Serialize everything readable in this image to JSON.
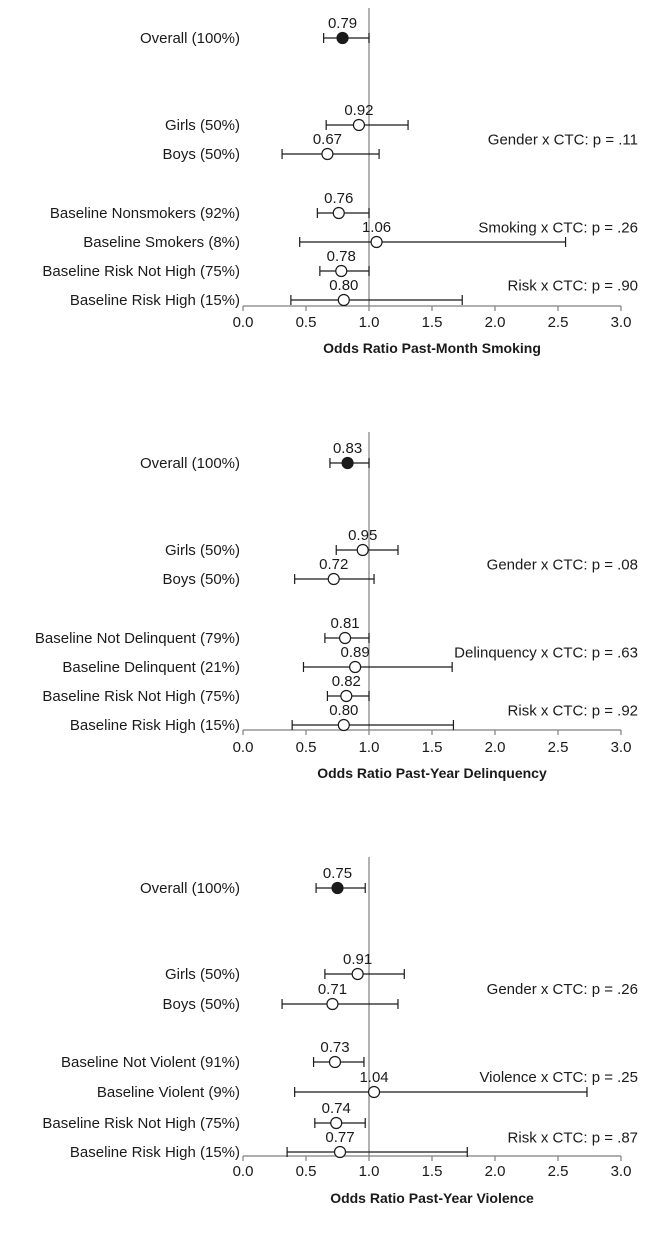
{
  "chart_data": [
    {
      "type": "forest",
      "xlabel": "Odds Ratio Past-Month Smoking",
      "xlim": [
        0.0,
        3.0
      ],
      "xticks": [
        "0.0",
        "0.5",
        "1.0",
        "1.5",
        "2.0",
        "2.5",
        "3.0"
      ],
      "reference_line": 1.0,
      "rows": [
        {
          "label": "Overall (100%)",
          "or_label": "0.79",
          "or": 0.79,
          "ci": [
            0.64,
            1.0
          ],
          "filled": true
        },
        {
          "label": "Girls (50%)",
          "or_label": "0.92",
          "or": 0.92,
          "ci": [
            0.66,
            1.31
          ],
          "filled": false
        },
        {
          "label": "Boys (50%)",
          "or_label": "0.67",
          "or": 0.67,
          "ci": [
            0.31,
            1.08
          ],
          "filled": false
        },
        {
          "label": "Baseline Nonsmokers (92%)",
          "or_label": "0.76",
          "or": 0.76,
          "ci": [
            0.59,
            1.0
          ],
          "filled": false
        },
        {
          "label": "Baseline Smokers (8%)",
          "or_label": "1.06",
          "or": 1.06,
          "ci": [
            0.45,
            2.56
          ],
          "filled": false
        },
        {
          "label": "Baseline Risk Not High (75%)",
          "or_label": "0.78",
          "or": 0.78,
          "ci": [
            0.61,
            1.0
          ],
          "filled": false
        },
        {
          "label": "Baseline Risk High (15%)",
          "or_label": "0.80",
          "or": 0.8,
          "ci": [
            0.38,
            1.74
          ],
          "filled": false
        }
      ],
      "interactions": [
        {
          "label": "Gender x CTC:  p = .11",
          "rows": [
            1,
            2
          ]
        },
        {
          "label": "Smoking x CTC:  p = .26",
          "rows": [
            3,
            4
          ]
        },
        {
          "label": "Risk x CTC:  p = .90",
          "rows": [
            5,
            6
          ]
        }
      ]
    },
    {
      "type": "forest",
      "xlabel": "Odds Ratio Past-Year Delinquency",
      "xlim": [
        0.0,
        3.0
      ],
      "xticks": [
        "0.0",
        "0.5",
        "1.0",
        "1.5",
        "2.0",
        "2.5",
        "3.0"
      ],
      "reference_line": 1.0,
      "rows": [
        {
          "label": "Overall (100%)",
          "or_label": "0.83",
          "or": 0.83,
          "ci": [
            0.69,
            1.0
          ],
          "filled": true
        },
        {
          "label": "Girls (50%)",
          "or_label": "0.95",
          "or": 0.95,
          "ci": [
            0.74,
            1.23
          ],
          "filled": false
        },
        {
          "label": "Boys (50%)",
          "or_label": "0.72",
          "or": 0.72,
          "ci": [
            0.41,
            1.04
          ],
          "filled": false
        },
        {
          "label": "Baseline Not Delinquent (79%)",
          "or_label": "0.81",
          "or": 0.81,
          "ci": [
            0.65,
            1.0
          ],
          "filled": false
        },
        {
          "label": "Baseline Delinquent (21%)",
          "or_label": "0.89",
          "or": 0.89,
          "ci": [
            0.48,
            1.66
          ],
          "filled": false
        },
        {
          "label": "Baseline Risk Not High (75%)",
          "or_label": "0.82",
          "or": 0.82,
          "ci": [
            0.67,
            1.0
          ],
          "filled": false
        },
        {
          "label": "Baseline Risk High (15%)",
          "or_label": "0.80",
          "or": 0.8,
          "ci": [
            0.39,
            1.67
          ],
          "filled": false
        }
      ],
      "interactions": [
        {
          "label": "Gender x CTC:  p = .08",
          "rows": [
            1,
            2
          ]
        },
        {
          "label": "Delinquency x CTC:  p = .63",
          "rows": [
            3,
            4
          ]
        },
        {
          "label": "Risk x CTC:  p = .92",
          "rows": [
            5,
            6
          ]
        }
      ]
    },
    {
      "type": "forest",
      "xlabel": "Odds Ratio Past-Year Violence",
      "xlim": [
        0.0,
        3.0
      ],
      "xticks": [
        "0.0",
        "0.5",
        "1.0",
        "1.5",
        "2.0",
        "2.5",
        "3.0"
      ],
      "reference_line": 1.0,
      "rows": [
        {
          "label": "Overall (100%)",
          "or_label": "0.75",
          "or": 0.75,
          "ci": [
            0.58,
            0.97
          ],
          "filled": true
        },
        {
          "label": "Girls (50%)",
          "or_label": "0.91",
          "or": 0.91,
          "ci": [
            0.65,
            1.28
          ],
          "filled": false
        },
        {
          "label": "Boys (50%)",
          "or_label": "0.71",
          "or": 0.71,
          "ci": [
            0.31,
            1.23
          ],
          "filled": false
        },
        {
          "label": "Baseline Not Violent (91%)",
          "or_label": "0.73",
          "or": 0.73,
          "ci": [
            0.56,
            0.96
          ],
          "filled": false
        },
        {
          "label": "Baseline Violent (9%)",
          "or_label": "1.04",
          "or": 1.04,
          "ci": [
            0.41,
            2.73
          ],
          "filled": false
        },
        {
          "label": "Baseline Risk Not High (75%)",
          "or_label": "0.74",
          "or": 0.74,
          "ci": [
            0.57,
            0.97
          ],
          "filled": false
        },
        {
          "label": "Baseline Risk High (15%)",
          "or_label": "0.77",
          "or": 0.77,
          "ci": [
            0.35,
            1.78
          ],
          "filled": false
        }
      ],
      "interactions": [
        {
          "label": "Gender x CTC:  p = .26",
          "rows": [
            1,
            2
          ]
        },
        {
          "label": "Violence x CTC:  p = .25",
          "rows": [
            3,
            4
          ]
        },
        {
          "label": "Risk x CTC:  p = .87",
          "rows": [
            5,
            6
          ]
        }
      ]
    }
  ]
}
